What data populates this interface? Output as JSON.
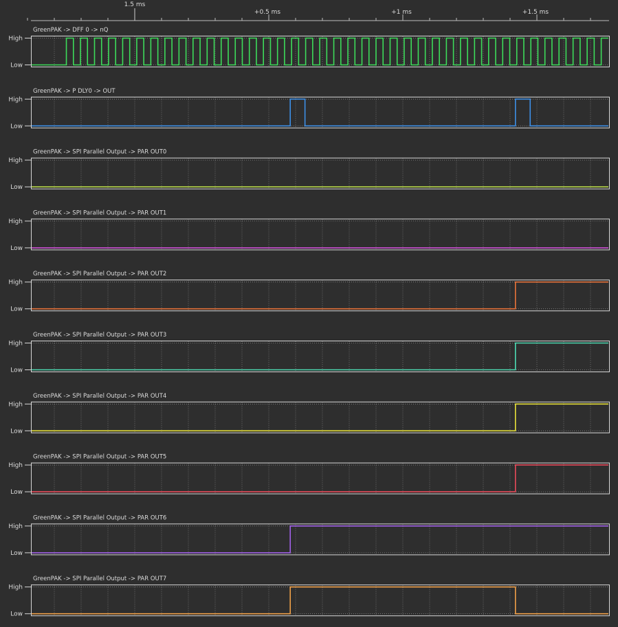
{
  "chart_data": {
    "type": "line",
    "subtype": "digital-timing-diagram",
    "x_unit": "ms",
    "xlim": [
      -0.45,
      1.76
    ],
    "time_ruler": {
      "labels": [
        {
          "t": 0.0,
          "text": "1.5 ms"
        },
        {
          "t": 0.5,
          "text": "+0.5 ms"
        },
        {
          "t": 1.0,
          "text": "+1 ms"
        },
        {
          "t": 1.5,
          "text": "+1.5 ms"
        }
      ],
      "minor_step": 0.1,
      "major_step": 0.5,
      "gridlines": true
    },
    "y_levels": [
      "Low",
      "High"
    ],
    "series": [
      {
        "name": "GreenPAK -> DFF 0 -> nQ",
        "color": "#3ddc5a",
        "initial": 0,
        "clock": {
          "start": -0.255,
          "period": 0.0525,
          "duty": 0.5
        }
      },
      {
        "name": "GreenPAK -> P DLY0 -> OUT",
        "color": "#3d8fe6",
        "initial": 0,
        "transitions": [
          [
            0.58,
            1
          ],
          [
            0.635,
            0
          ],
          [
            1.42,
            1
          ],
          [
            1.475,
            0
          ]
        ]
      },
      {
        "name": "GreenPAK -> SPI Parallel Output -> PAR OUT0",
        "color": "#b8d84a",
        "initial": 0,
        "transitions": []
      },
      {
        "name": "GreenPAK -> SPI Parallel Output -> PAR OUT1",
        "color": "#d050d8",
        "initial": 0,
        "transitions": []
      },
      {
        "name": "GreenPAK -> SPI Parallel Output -> PAR OUT2",
        "color": "#e8733a",
        "initial": 0,
        "transitions": [
          [
            1.42,
            1
          ]
        ]
      },
      {
        "name": "GreenPAK -> SPI Parallel Output -> PAR OUT3",
        "color": "#4ddcb4",
        "initial": 0,
        "transitions": [
          [
            1.42,
            1
          ]
        ]
      },
      {
        "name": "GreenPAK -> SPI Parallel Output -> PAR OUT4",
        "color": "#e8e23a",
        "initial": 0,
        "transitions": [
          [
            1.42,
            1
          ]
        ]
      },
      {
        "name": "GreenPAK -> SPI Parallel Output -> PAR OUT5",
        "color": "#e84a5a",
        "initial": 0,
        "transitions": [
          [
            1.42,
            1
          ]
        ]
      },
      {
        "name": "GreenPAK -> SPI Parallel Output -> PAR OUT6",
        "color": "#a060e8",
        "initial": 0,
        "transitions": [
          [
            0.58,
            1
          ]
        ]
      },
      {
        "name": "GreenPAK -> SPI Parallel Output -> PAR OUT7",
        "color": "#f0a048",
        "initial": 0,
        "transitions": [
          [
            0.58,
            1
          ],
          [
            1.42,
            0
          ]
        ]
      }
    ]
  }
}
